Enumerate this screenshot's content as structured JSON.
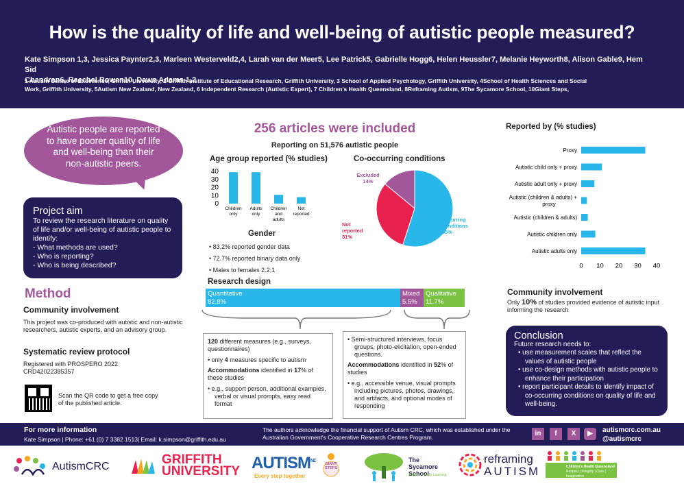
{
  "header": {
    "title": "How is the quality of life and well-being of autistic people measured?",
    "authors_line1": "Kate Simpson 1,3, Jessica Paynter2,3, Marleen Westerveld2,4, Larah van der Meer5, Lee Patrick5, Gabrielle Hogg6, Helen Heussler7, Melanie Heyworth8, Alison Gable9, Hem Sid",
    "authors_line2": "Chandran6, Raechel Bowen10, Dawn Adams 1,2",
    "affil_line1": "1 Autism Centre of Excellence, Griffith University, 2 Griffith Institute of Educational Research, Griffith University, 3 School of Applied Psychology, Griffith University, 4School of Health Sciences and Social",
    "affil_line2": "Work, Griffith University, 5Autism New Zealand, New Zealand, 6 Independent Research (Autistic Expert), 7 Children's Health Queensland, 8Reframing Autism, 9The Sycamore School, 10Giant Steps,"
  },
  "bubble_text": "Autistic people are reported to have poorer quality of life and well-being than their non-autistic peers.",
  "aim": {
    "title": "Project aim",
    "intro": "To review the research literature on quality of life and/or well-being of autistic people to identify:",
    "items": [
      "What methods are used?",
      "Who is reporting?",
      "Who is being described?"
    ]
  },
  "method": {
    "title": "Method",
    "community_title": "Community involvement",
    "community_text": "This project was co-produced with autistic and non-autistic researchers, autistic experts, and an advisory group.",
    "protocol_title": "Systematic review protocol",
    "protocol_text": "Registered with PROSPERO 2022 CRD42022385357",
    "qr_text": "Scan the QR code to get a free copy of the published article."
  },
  "center": {
    "headline": "256 articles were included",
    "subline": "Reporting on 51,576 autistic people",
    "age_title": "Age group reported (% studies)",
    "cooc_title": "Co-occurring conditions",
    "gender_title": "Gender",
    "gender_items": [
      "83.2% reported gender data",
      "72.7% reported binary data only",
      "Males to females 2.2:1"
    ],
    "design_title": "Research design",
    "quant_label": "Quantitative",
    "quant_value": "82.8%",
    "mixed_label": "Mixed",
    "mixed_value": "5.5%",
    "qual_label": "Qualitative",
    "qual_value": "11.7%",
    "left_box": {
      "item1_bold": "120",
      "item1_rest": " different measures (e.g., surveys, questionnaires)",
      "item2_pre": "only ",
      "item2_bold": "4",
      "item2_rest": " measures specific to autism",
      "acc_bold": "Accommodations",
      "acc_mid": " identified in ",
      "acc_pct": "17",
      "acc_end": "% of these studies",
      "item3": "e.g., support person, additional examples, verbal or visual prompts, easy read format"
    },
    "right_box": {
      "item1": "Semi-structured interviews, focus groups, photo-elicitation, open-ended questions.",
      "acc_bold": "Accommodations",
      "acc_mid": " identified in ",
      "acc_pct": "52",
      "acc_end": "% of studies",
      "item2": "e.g., accessible venue, visual prompts including pictures, photos, drawings, and artifacts, and optional modes of responding"
    }
  },
  "right": {
    "reported_title": "Reported by (% studies)",
    "community_title": "Community involvement",
    "community_pre": "Only ",
    "community_bold": "10%",
    "community_rest": " of studies provided evidence of autistic input informing the research",
    "conclusion_title": "Conclusion",
    "conclusion_intro": "Future research needs to:",
    "conclusion_items": [
      "use measurement scales that reflect the values of autistic people",
      "use co-design methods with autistic people to enhance their participation",
      "report participant details to identify impact of co-occurring conditions on quality of life and well-being."
    ]
  },
  "footer": {
    "more_title": "For more information",
    "contact": "Kate Simpson |   Phone: +61 (0) 7 3382 1513|   Email: k.simpson@griffith.edu.au",
    "ack": "The authors acknowledge the financial support of Autism CRC, which was established under the Australian Government's Cooperative Research Centres Program.",
    "site": "autismcrc.com.au",
    "handle": "@autismcrc",
    "social_icons": [
      "linkedin-icon",
      "facebook-icon",
      "x-icon",
      "youtube-icon"
    ]
  },
  "logos": [
    "AutismCRC",
    "GRIFFITH",
    "UNIVERSITY",
    "AUTISM",
    "NZ",
    "Every step together",
    "GIANT STEPS",
    "The Sycamore School",
    "Autism · Family Learning",
    "reframing",
    "AUTISM",
    "Children's Health Queensland",
    "Respect | Integrity | Care | Imagination"
  ],
  "colors": {
    "navy": "#221c57",
    "purple": "#a3579b",
    "cyan": "#29b6e8",
    "red": "#e8214f",
    "green": "#7cc242"
  },
  "chart_data": [
    {
      "type": "bar",
      "title": "Age group reported (% studies)",
      "categories": [
        "Children only",
        "Adults only",
        "Children and adults",
        "Not reported"
      ],
      "values": [
        39,
        39,
        11,
        8
      ],
      "ylim": [
        0,
        40
      ],
      "yticks": [
        0,
        10,
        20,
        30,
        40
      ],
      "grid": false
    },
    {
      "type": "pie",
      "title": "Co-occurring conditions",
      "labels": [
        "Co-occurring conditions",
        "Not reported",
        "Excluded"
      ],
      "values": [
        55,
        31,
        14
      ],
      "colors": [
        "#29b6e8",
        "#e8214f",
        "#a3579b"
      ]
    },
    {
      "type": "bar",
      "orientation": "horizontal",
      "title": "Reported by (% studies)",
      "categories": [
        "Proxy",
        "Autistic child only + proxy",
        "Autistic adult only + proxy",
        "Autistic (children & adults) + proxy",
        "Autistic (children & adults)",
        "Autistic children only",
        "Autistic adults only"
      ],
      "values": [
        34,
        11,
        7,
        3,
        3.5,
        7.5,
        34
      ],
      "xlim": [
        0,
        40
      ],
      "xticks": [
        0,
        10,
        20,
        30,
        40
      ],
      "grid": false
    }
  ]
}
